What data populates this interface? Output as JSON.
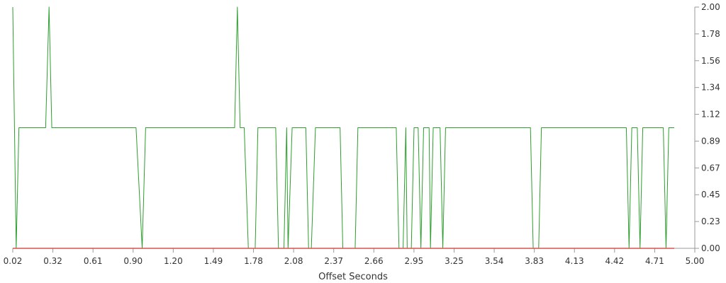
{
  "chart_data": {
    "type": "line",
    "xlabel": "Offset Seconds",
    "ylabel": "",
    "xlim": [
      0.02,
      5.0
    ],
    "ylim": [
      0.0,
      2.0
    ],
    "x_ticks": [
      "0.02",
      "0.32",
      "0.61",
      "0.90",
      "1.20",
      "1.49",
      "1.78",
      "2.08",
      "2.37",
      "2.66",
      "2.95",
      "3.25",
      "3.54",
      "3.83",
      "4.13",
      "4.42",
      "4.71",
      "5.00"
    ],
    "y_ticks": [
      "0.00",
      "0.23",
      "0.45",
      "0.67",
      "0.89",
      "1.12",
      "1.34",
      "1.56",
      "1.78",
      "2.00"
    ],
    "y_axis_position": "right",
    "grid": false,
    "series": [
      {
        "color": "#2e9e2e",
        "points": [
          [
            0.02,
            2.0
          ],
          [
            0.045,
            0.0
          ],
          [
            0.065,
            1.0
          ],
          [
            0.26,
            1.0
          ],
          [
            0.285,
            2.0
          ],
          [
            0.305,
            1.0
          ],
          [
            0.92,
            1.0
          ],
          [
            0.965,
            0.0
          ],
          [
            0.99,
            1.0
          ],
          [
            1.64,
            1.0
          ],
          [
            1.66,
            2.0
          ],
          [
            1.68,
            1.0
          ],
          [
            1.71,
            1.0
          ],
          [
            1.74,
            0.0
          ],
          [
            1.79,
            0.0
          ],
          [
            1.81,
            1.0
          ],
          [
            1.94,
            1.0
          ],
          [
            1.96,
            0.0
          ],
          [
            2.0,
            0.0
          ],
          [
            2.02,
            1.0
          ],
          [
            2.03,
            0.0
          ],
          [
            2.06,
            1.0
          ],
          [
            2.16,
            1.0
          ],
          [
            2.18,
            0.0
          ],
          [
            2.2,
            0.0
          ],
          [
            2.23,
            1.0
          ],
          [
            2.41,
            1.0
          ],
          [
            2.43,
            0.0
          ],
          [
            2.52,
            0.0
          ],
          [
            2.54,
            1.0
          ],
          [
            2.82,
            1.0
          ],
          [
            2.84,
            0.0
          ],
          [
            2.87,
            0.0
          ],
          [
            2.89,
            1.0
          ],
          [
            2.9,
            0.0
          ],
          [
            2.93,
            0.0
          ],
          [
            2.95,
            1.0
          ],
          [
            2.98,
            1.0
          ],
          [
            3.0,
            0.0
          ],
          [
            3.02,
            1.0
          ],
          [
            3.06,
            1.0
          ],
          [
            3.07,
            0.0
          ],
          [
            3.09,
            1.0
          ],
          [
            3.14,
            1.0
          ],
          [
            3.16,
            0.0
          ],
          [
            3.18,
            1.0
          ],
          [
            3.8,
            1.0
          ],
          [
            3.82,
            0.0
          ],
          [
            3.86,
            0.0
          ],
          [
            3.88,
            1.0
          ],
          [
            4.5,
            1.0
          ],
          [
            4.52,
            0.0
          ],
          [
            4.54,
            1.0
          ],
          [
            4.58,
            1.0
          ],
          [
            4.6,
            0.0
          ],
          [
            4.62,
            1.0
          ],
          [
            4.77,
            1.0
          ],
          [
            4.79,
            0.0
          ],
          [
            4.81,
            1.0
          ],
          [
            4.85,
            1.0
          ]
        ]
      },
      {
        "color": "#d9534f",
        "points": [
          [
            0.02,
            0.0
          ],
          [
            4.85,
            0.0
          ]
        ]
      }
    ]
  }
}
